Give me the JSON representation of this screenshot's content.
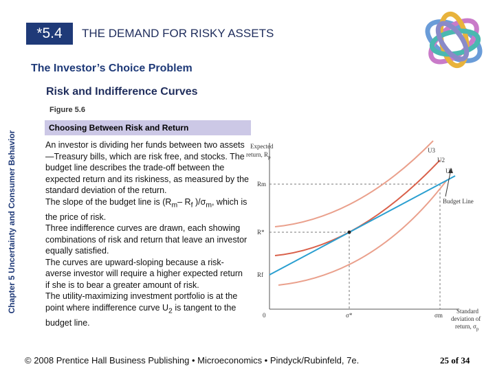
{
  "header": {
    "section": "*5.4",
    "title": "THE DEMAND FOR RISKY ASSETS",
    "subtitle": "The Investor’s Choice Problem",
    "subheading": "Risk and Indifference Curves"
  },
  "side_label": "Chapter 5 Uncertainty and Consumer Behavior",
  "figure": {
    "label": "Figure 5.6",
    "caption": "Choosing Between Risk and Return"
  },
  "body": {
    "paragraphs": [
      [
        "An investor is dividing her funds between two assets—Treasury bills, which are risk free, and stocks. The budget line describes the trade-off between the expected return and its riskiness, as measured by the standard deviation of the return."
      ],
      [
        "The slope of the budget line is (R",
        "m",
        "– R",
        "f",
        " )/σ",
        "m",
        ", which is the price of risk."
      ],
      [
        "Three indifference curves are drawn, each showing combinations of risk and return that leave an investor equally satisfied."
      ],
      [
        "The curves are upward-sloping because a risk-averse investor will require a higher expected return if she is to bear a greater amount of risk."
      ],
      [
        "The utility-maximizing investment portfolio is at the point where indifference curve U",
        "2",
        " is tangent to the budget line."
      ]
    ]
  },
  "diagram": {
    "y_axis_label": [
      "Expected",
      "return, R",
      "p"
    ],
    "x_axis_label": [
      "Standard",
      "deviation of",
      "return, σ",
      "p"
    ],
    "curves": [
      "U3",
      "U2",
      "U1"
    ],
    "budget_line": "Budget Line",
    "y_marks": [
      "Rm",
      "R*",
      "Rf"
    ],
    "x_marks": [
      "0",
      "σ*",
      "σm"
    ]
  },
  "footer": {
    "credit": "© 2008 Prentice Hall Business Publishing • Microeconomics • Pindyck/Rubinfeld, 7e.",
    "page": "25 of 34"
  }
}
